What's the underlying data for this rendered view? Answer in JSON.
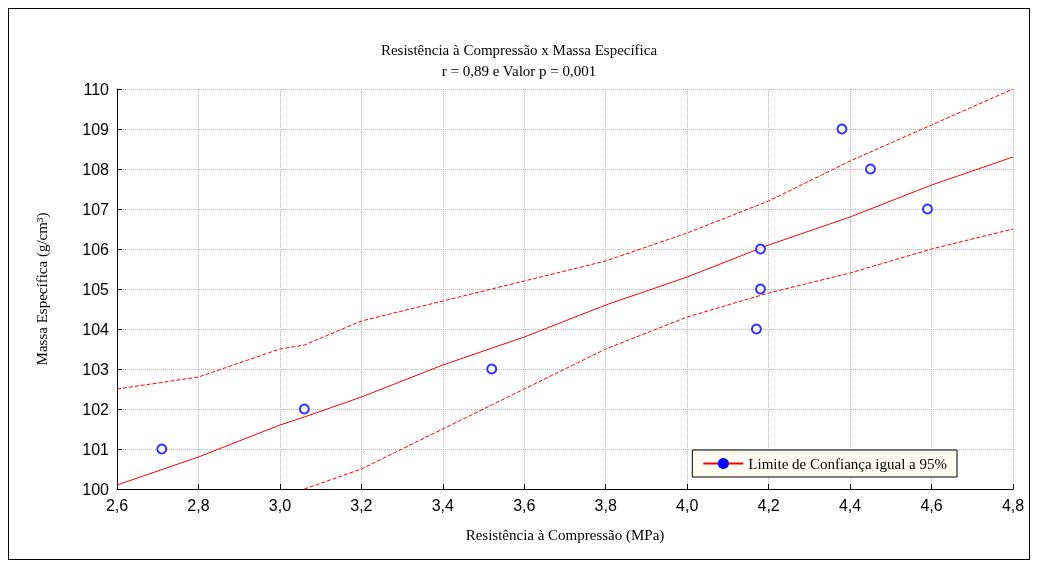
{
  "chart_data": {
    "type": "scatter",
    "title": "Resistência à Compressão x Massa Específica",
    "subtitle": "r = 0,89 e Valor p = 0,001",
    "xlabel": "Resistência à Compressão (MPa)",
    "ylabel": "Massa Específica (g/cm³)",
    "xlim": [
      2.6,
      4.8
    ],
    "xticks": [
      {
        "value": 2.6,
        "label": "2,6"
      },
      {
        "value": 2.8,
        "label": "2,8"
      },
      {
        "value": 3.0,
        "label": "3,0"
      },
      {
        "value": 3.2,
        "label": "3,2"
      },
      {
        "value": 3.4,
        "label": "3,4"
      },
      {
        "value": 3.6,
        "label": "3,6"
      },
      {
        "value": 3.8,
        "label": "3,8"
      },
      {
        "value": 4.0,
        "label": "4,0"
      },
      {
        "value": 4.2,
        "label": "4,2"
      },
      {
        "value": 4.4,
        "label": "4,4"
      },
      {
        "value": 4.6,
        "label": "4,6"
      },
      {
        "value": 4.8,
        "label": "4,8"
      }
    ],
    "ylim": [
      100,
      110
    ],
    "yticks": [
      100,
      101,
      102,
      103,
      104,
      105,
      106,
      107,
      108,
      109,
      110
    ],
    "grid": true,
    "legend": "bottom right",
    "marker": "circle",
    "series": [
      {
        "color": "#0000ff",
        "x": [
          2.71,
          3.06,
          3.52,
          4.17,
          4.18,
          4.18,
          4.38,
          4.45,
          4.59
        ],
        "values": [
          101,
          102,
          103,
          104,
          105,
          106,
          109,
          108,
          107
        ]
      },
      {
        "type": "line",
        "name": "Limite de Confiança igual a 95%",
        "color": "#ff0000",
        "line_style": "solid",
        "marker": "none",
        "x": [
          2.6,
          2.8,
          3.0,
          3.06,
          3.2,
          3.4,
          3.6,
          3.8,
          4.0,
          4.2,
          4.4,
          4.6,
          4.8
        ],
        "values": [
          100.1,
          100.8,
          101.6,
          101.8,
          102.3,
          103.1,
          103.8,
          104.6,
          105.3,
          106.1,
          106.8,
          107.6,
          108.3
        ]
      },
      {
        "type": "line",
        "color": "#ff0000",
        "line_style": "dashed",
        "marker": "none",
        "x": [
          2.6,
          2.8,
          3.0,
          3.06,
          3.2,
          3.4,
          3.6,
          3.8,
          4.0,
          4.2,
          4.4,
          4.6,
          4.8
        ],
        "values": [
          102.5,
          102.8,
          103.5,
          103.6,
          104.2,
          104.7,
          105.2,
          105.7,
          106.4,
          107.2,
          108.2,
          109.1,
          110.0
        ]
      },
      {
        "type": "line",
        "color": "#ff0000",
        "line_style": "dashed",
        "marker": "none",
        "x": [
          3.06,
          3.2,
          3.4,
          3.6,
          3.8,
          4.0,
          4.2,
          4.4,
          4.6,
          4.8
        ],
        "values": [
          100.0,
          100.5,
          101.5,
          102.5,
          103.5,
          104.3,
          104.9,
          105.4,
          106.0,
          106.5
        ]
      }
    ]
  }
}
